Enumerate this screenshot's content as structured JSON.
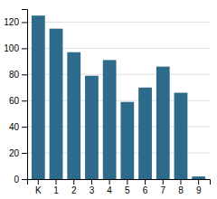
{
  "chart_data": {
    "type": "bar",
    "categories": [
      "K",
      "1",
      "2",
      "3",
      "4",
      "5",
      "6",
      "7",
      "8",
      "9"
    ],
    "values": [
      125,
      115,
      97,
      79,
      91,
      59,
      70,
      86,
      66,
      2
    ],
    "color": "#2e6b8a",
    "ylim": [
      0,
      130
    ],
    "yticks": [
      0,
      20,
      40,
      60,
      80,
      100,
      120
    ],
    "grid": true
  }
}
